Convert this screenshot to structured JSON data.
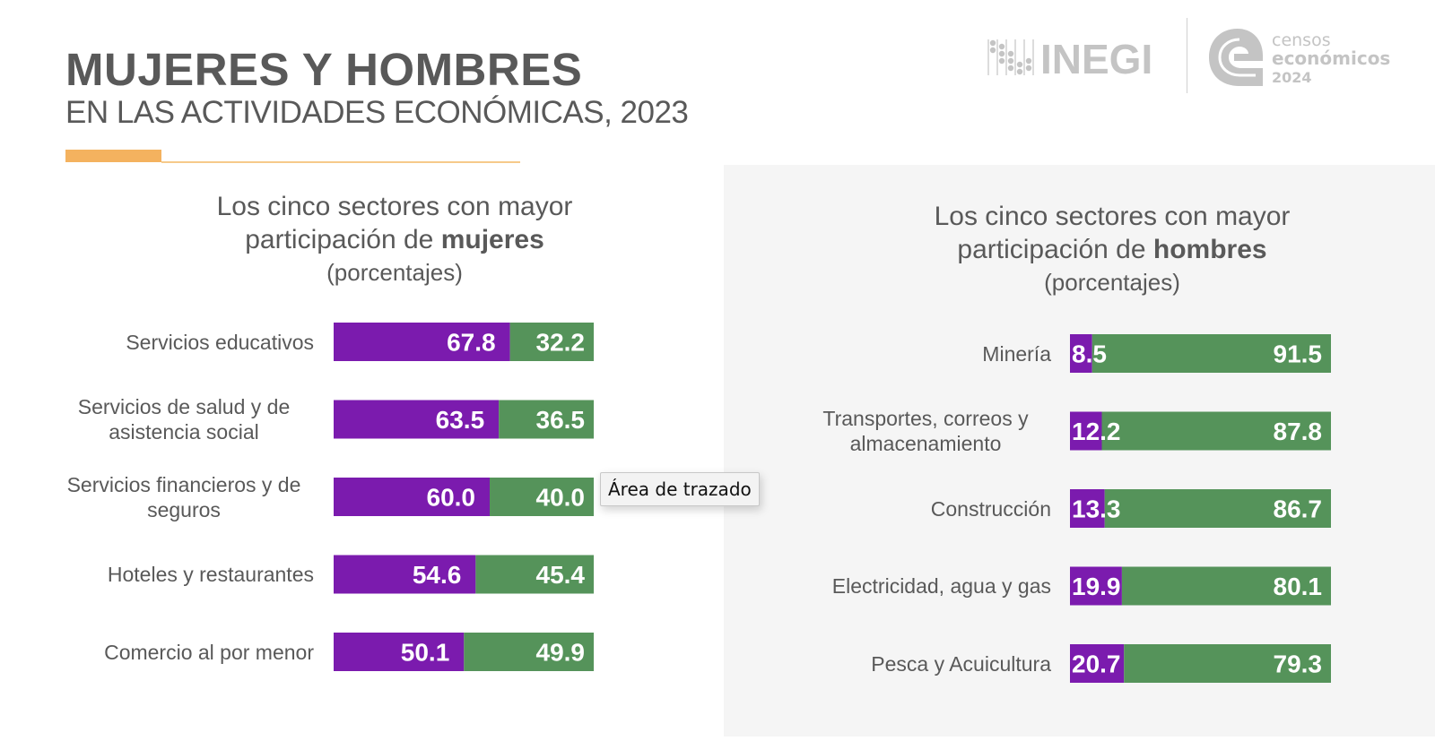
{
  "header": {
    "title": "MUJERES Y HOMBRES",
    "subtitle": "EN LAS ACTIVIDADES ECONÓMICAS, 2023"
  },
  "logos": {
    "inegi": "INEGI",
    "censos_line1": "censos",
    "censos_line2": "económicos",
    "censos_line3": "2024"
  },
  "colors": {
    "mujeres": "#7B1BAE",
    "hombres": "#55935A",
    "accent": "#F4B25F",
    "text": "#595959",
    "panel": "#F5F5F5"
  },
  "tooltip": "Área de trazado",
  "chart_data": [
    {
      "type": "bar",
      "orientation": "horizontal",
      "stacked": true,
      "title_line1": "Los cinco sectores con mayor",
      "title_line2_pre": "participación de ",
      "title_line2_bold": "mujeres",
      "title_line3": "(porcentajes)",
      "categories": [
        [
          "Servicios educativos"
        ],
        [
          "Servicios de salud y de",
          "asistencia social"
        ],
        [
          "Servicios financieros y de",
          "seguros"
        ],
        [
          "Hoteles y restaurantes"
        ],
        [
          "Comercio al por menor"
        ]
      ],
      "series": [
        {
          "name": "Mujeres",
          "values": [
            67.8,
            63.5,
            60.0,
            54.6,
            50.1
          ]
        },
        {
          "name": "Hombres",
          "values": [
            32.2,
            36.5,
            40.0,
            45.4,
            49.9
          ]
        }
      ],
      "value_labels": [
        [
          "67.8",
          "63.5",
          "60.0",
          "54.6",
          "50.1"
        ],
        [
          "32.2",
          "36.5",
          "40.0",
          "45.4",
          "49.9"
        ]
      ],
      "xlim": [
        0,
        100
      ],
      "xlabel": "",
      "ylabel": "",
      "grid": false,
      "legend": "none"
    },
    {
      "type": "bar",
      "orientation": "horizontal",
      "stacked": true,
      "title_line1": "Los cinco sectores con mayor",
      "title_line2_pre": "participación de ",
      "title_line2_bold": "hombres",
      "title_line3": "(porcentajes)",
      "categories": [
        [
          "Minería"
        ],
        [
          "Transportes, correos y",
          "almacenamiento"
        ],
        [
          "Construcción"
        ],
        [
          "Electricidad, agua y gas"
        ],
        [
          "Pesca y Acuicultura"
        ]
      ],
      "series": [
        {
          "name": "Mujeres",
          "values": [
            8.5,
            12.2,
            13.3,
            19.9,
            20.7
          ]
        },
        {
          "name": "Hombres",
          "values": [
            91.5,
            87.8,
            86.7,
            80.1,
            79.3
          ]
        }
      ],
      "value_labels": [
        [
          "8.5",
          "12.2",
          "13.3",
          "19.9",
          "20.7"
        ],
        [
          "91.5",
          "87.8",
          "86.7",
          "80.1",
          "79.3"
        ]
      ],
      "xlim": [
        0,
        100
      ],
      "xlabel": "",
      "ylabel": "",
      "grid": false,
      "legend": "none"
    }
  ]
}
